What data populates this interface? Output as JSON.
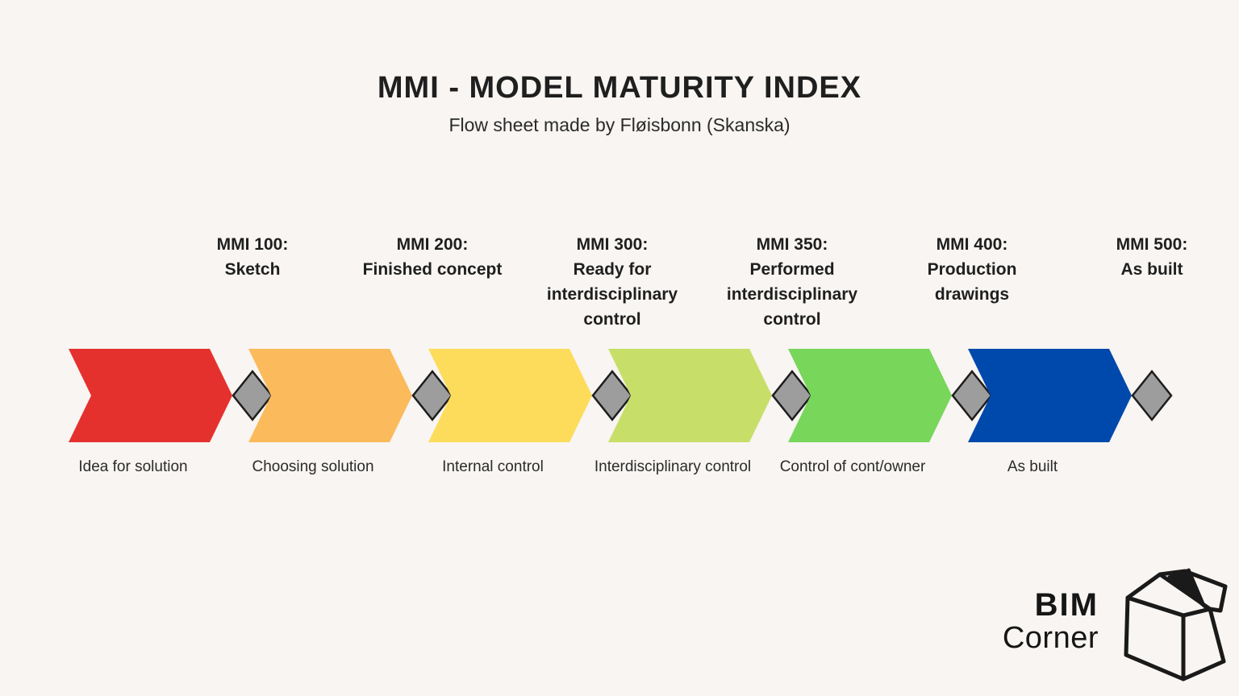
{
  "page": {
    "background": "#f8f5f2",
    "text_color": "#1f1f1f"
  },
  "header": {
    "title": "MMI - MODEL MATURITY INDEX",
    "subtitle": "Flow sheet made by Fløisbonn (Skanska)"
  },
  "flow": {
    "diamond_color": "#9d9d9d",
    "diamond_border": "#1d1d1d",
    "stages": [
      {
        "color": "#e5312e",
        "phase": "Idea for solution",
        "milestone_lines": [
          "MMI 100:",
          "Sketch"
        ]
      },
      {
        "color": "#fbba5b",
        "phase": "Choosing solution",
        "milestone_lines": [
          "MMI 200:",
          "Finished concept"
        ]
      },
      {
        "color": "#fddc5b",
        "phase": "Internal control",
        "milestone_lines": [
          "MMI 300:",
          "Ready for",
          "interdisciplinary",
          "control"
        ]
      },
      {
        "color": "#c7df69",
        "phase": "Interdisciplinary control",
        "milestone_lines": [
          "MMI 350:",
          "Performed",
          "interdisciplinary",
          "control"
        ]
      },
      {
        "color": "#78d65a",
        "phase": "Control of cont/owner",
        "milestone_lines": [
          "MMI 400:",
          "Production",
          "drawings"
        ]
      },
      {
        "color": "#0049ac",
        "phase": "As built",
        "milestone_lines": [
          "MMI 500:",
          "As built"
        ]
      }
    ]
  },
  "logo": {
    "line1": "BIM",
    "line2": "Corner",
    "icon": "open-box-icon"
  }
}
